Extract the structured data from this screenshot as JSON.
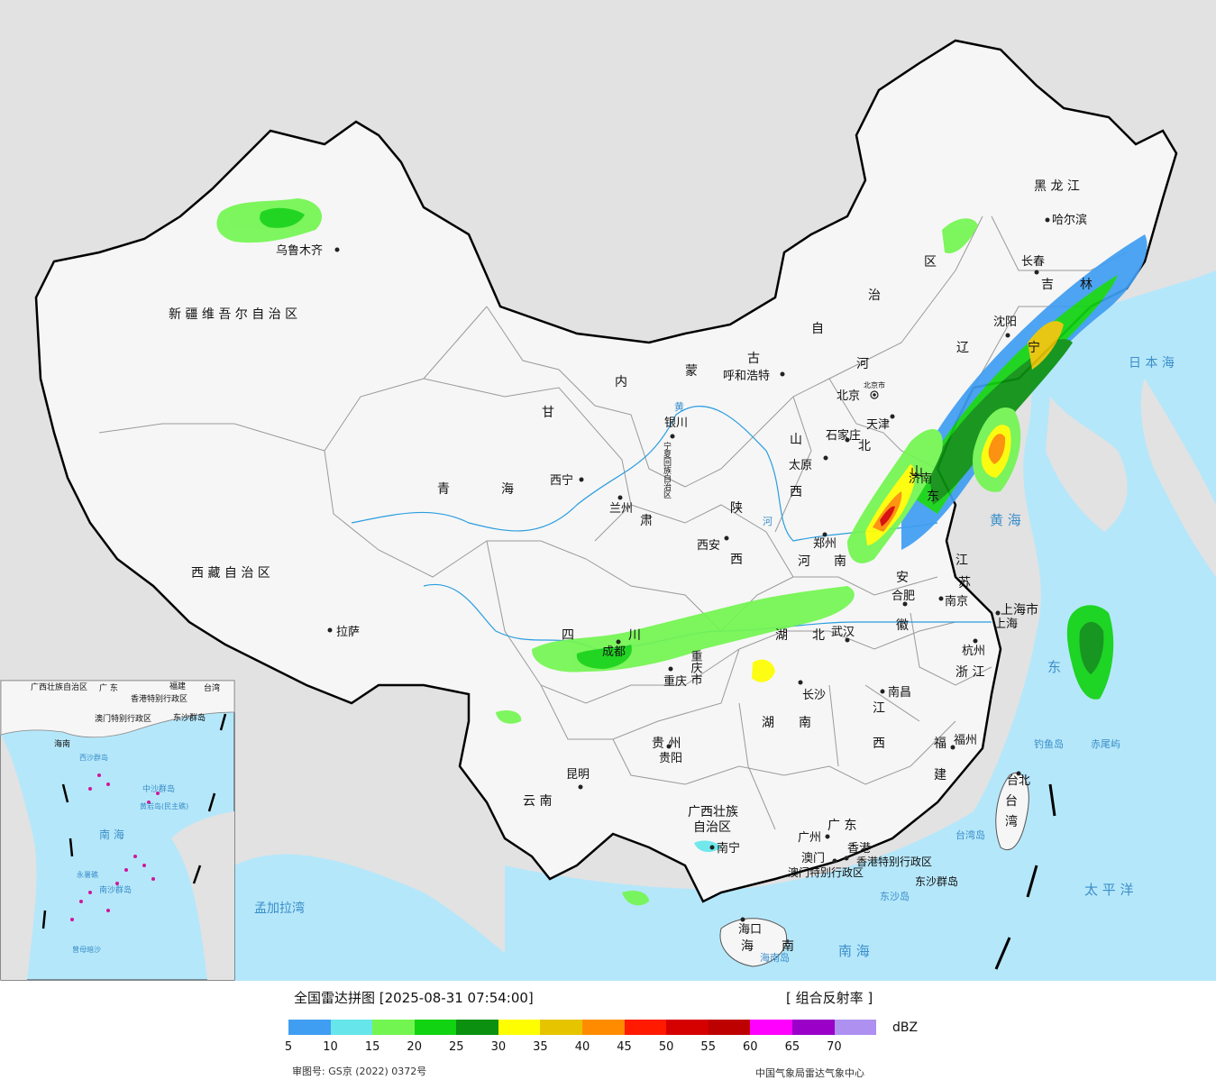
{
  "provinces": [
    {
      "id": "xinjiang",
      "label": "新 疆 维 吾 尔 自 治 区"
    },
    {
      "id": "xizang",
      "label": "西 藏 自 治 区"
    },
    {
      "id": "qinghai_1",
      "label": "青"
    },
    {
      "id": "qinghai_2",
      "label": "海"
    },
    {
      "id": "gansu_1",
      "label": "甘"
    },
    {
      "id": "gansu_2",
      "label": "肃"
    },
    {
      "id": "neimenggu_1",
      "label": "内"
    },
    {
      "id": "neimenggu_2",
      "label": "蒙"
    },
    {
      "id": "neimenggu_3",
      "label": "古"
    },
    {
      "id": "neimenggu_4",
      "label": "自"
    },
    {
      "id": "neimenggu_5",
      "label": "治"
    },
    {
      "id": "neimenggu_6",
      "label": "区"
    },
    {
      "id": "heilongjiang",
      "label": "黑 龙 江"
    },
    {
      "id": "jilin_1",
      "label": "吉"
    },
    {
      "id": "jilin_2",
      "label": "林"
    },
    {
      "id": "liaoning_1",
      "label": "辽"
    },
    {
      "id": "liaoning_2",
      "label": "宁"
    },
    {
      "id": "hebei_1",
      "label": "河"
    },
    {
      "id": "hebei_2",
      "label": "北"
    },
    {
      "id": "shanxi_1",
      "label": "山"
    },
    {
      "id": "shanxi_2",
      "label": "西"
    },
    {
      "id": "shaanxi_1",
      "label": "陕"
    },
    {
      "id": "shaanxi_2",
      "label": "西"
    },
    {
      "id": "ningxia",
      "label": "宁夏回族自治区"
    },
    {
      "id": "shandong_1",
      "label": "山"
    },
    {
      "id": "shandong_2",
      "label": "东"
    },
    {
      "id": "henan_1",
      "label": "河"
    },
    {
      "id": "henan_2",
      "label": "南"
    },
    {
      "id": "jiangsu_1",
      "label": "江"
    },
    {
      "id": "jiangsu_2",
      "label": "苏"
    },
    {
      "id": "anhui_1",
      "label": "安"
    },
    {
      "id": "anhui_2",
      "label": "徽"
    },
    {
      "id": "sichuan_1",
      "label": "四"
    },
    {
      "id": "sichuan_2",
      "label": "川"
    },
    {
      "id": "chongqing",
      "label": "重庆市"
    },
    {
      "id": "hubei_1",
      "label": "湖"
    },
    {
      "id": "hubei_2",
      "label": "北"
    },
    {
      "id": "shanghai",
      "label": "上海市"
    },
    {
      "id": "zhejiang",
      "label": "浙 江"
    },
    {
      "id": "hunan_1",
      "label": "湖"
    },
    {
      "id": "hunan_2",
      "label": "南"
    },
    {
      "id": "jiangxi_1",
      "label": "江"
    },
    {
      "id": "jiangxi_2",
      "label": "西"
    },
    {
      "id": "guizhou",
      "label": "贵 州"
    },
    {
      "id": "fujian_1",
      "label": "福"
    },
    {
      "id": "fujian_2",
      "label": "建"
    },
    {
      "id": "yunnan",
      "label": "云 南"
    },
    {
      "id": "guangxi_1",
      "label": "广西壮族"
    },
    {
      "id": "guangxi_2",
      "label": "自治区"
    },
    {
      "id": "guangdong",
      "label": "广 东"
    },
    {
      "id": "taiwan_1",
      "label": "台"
    },
    {
      "id": "taiwan_2",
      "label": "湾"
    },
    {
      "id": "hainan_1",
      "label": "海"
    },
    {
      "id": "hainan_2",
      "label": "南"
    },
    {
      "id": "hongkong",
      "label": "香港特别行政区"
    },
    {
      "id": "macau",
      "label": "澳门特别行政区"
    }
  ],
  "cities": [
    {
      "id": "urumqi",
      "label": "乌鲁木齐"
    },
    {
      "id": "lhasa",
      "label": "拉萨"
    },
    {
      "id": "xining",
      "label": "西宁"
    },
    {
      "id": "lanzhou",
      "label": "兰州"
    },
    {
      "id": "yinchuan",
      "label": "银川"
    },
    {
      "id": "hohhot",
      "label": "呼和浩特"
    },
    {
      "id": "beijing",
      "label": "北京"
    },
    {
      "id": "beijing_small",
      "label": "北京市"
    },
    {
      "id": "tianjin",
      "label": "天津"
    },
    {
      "id": "shijiazhuang",
      "label": "石家庄"
    },
    {
      "id": "taiyuan",
      "label": "太原"
    },
    {
      "id": "xian",
      "label": "西安"
    },
    {
      "id": "zhengzhou",
      "label": "郑州"
    },
    {
      "id": "jinan",
      "label": "济南"
    },
    {
      "id": "shenyang",
      "label": "沈阳"
    },
    {
      "id": "changchun",
      "label": "长春"
    },
    {
      "id": "harbin",
      "label": "哈尔滨"
    },
    {
      "id": "chengdu",
      "label": "成都"
    },
    {
      "id": "chongqing",
      "label": "重庆"
    },
    {
      "id": "wuhan",
      "label": "武汉"
    },
    {
      "id": "hefei",
      "label": "合肥"
    },
    {
      "id": "nanjing",
      "label": "南京"
    },
    {
      "id": "shanghai",
      "label": "上海"
    },
    {
      "id": "hangzhou",
      "label": "杭州"
    },
    {
      "id": "changsha",
      "label": "长沙"
    },
    {
      "id": "nanchang",
      "label": "南昌"
    },
    {
      "id": "fuzhou",
      "label": "福州"
    },
    {
      "id": "guiyang",
      "label": "贵阳"
    },
    {
      "id": "kunming",
      "label": "昆明"
    },
    {
      "id": "nanning",
      "label": "南宁"
    },
    {
      "id": "guangzhou",
      "label": "广州"
    },
    {
      "id": "hongkong",
      "label": "香港"
    },
    {
      "id": "macau",
      "label": "澳门"
    },
    {
      "id": "haikou",
      "label": "海口"
    },
    {
      "id": "taipei",
      "label": "台北"
    }
  ],
  "water": [
    {
      "id": "sea_japan",
      "label": "日 本 海"
    },
    {
      "id": "yellow_sea",
      "label": "黄 海"
    },
    {
      "id": "east_sea",
      "label": "东"
    },
    {
      "id": "pacific",
      "label": "太 平 洋"
    },
    {
      "id": "south_sea",
      "label": "南 海"
    },
    {
      "id": "bengal",
      "label": "孟加拉湾"
    },
    {
      "id": "hainan_dao",
      "label": "海南岛"
    },
    {
      "id": "taiwan_dao",
      "label": "台湾岛"
    },
    {
      "id": "dongsha",
      "label": "东沙群岛"
    },
    {
      "id": "dongsha_2",
      "label": "东沙岛"
    },
    {
      "id": "diaoyu",
      "label": "钓鱼岛"
    },
    {
      "id": "chiwei",
      "label": "赤尾屿"
    },
    {
      "id": "yellow_river",
      "label": "黄"
    },
    {
      "id": "river_he",
      "label": "河"
    }
  ],
  "inset": {
    "labels": [
      {
        "id": "i_guangxi",
        "label": "广西壮族自治区"
      },
      {
        "id": "i_guangdong",
        "label": "广 东"
      },
      {
        "id": "i_fujian",
        "label": "福建"
      },
      {
        "id": "i_taiwan",
        "label": "台湾"
      },
      {
        "id": "i_hk",
        "label": "香港特别行政区"
      },
      {
        "id": "i_macau",
        "label": "澳门特别行政区"
      },
      {
        "id": "i_dongsha",
        "label": "东沙群岛"
      },
      {
        "id": "i_hainan",
        "label": "海南"
      },
      {
        "id": "i_zhongsha",
        "label": "中沙群岛"
      },
      {
        "id": "i_huangyan",
        "label": "黄岩岛(民主礁)"
      },
      {
        "id": "i_southsea",
        "label": "南 海"
      },
      {
        "id": "i_yongshu",
        "label": "永暑礁"
      },
      {
        "id": "i_nansha",
        "label": "南沙群岛"
      },
      {
        "id": "i_zengmu",
        "label": "曾母暗沙"
      },
      {
        "id": "i_xisha",
        "label": "西沙群岛"
      }
    ]
  },
  "legend": {
    "title": "全国雷达拼图 [2025-08-31 07:54:00]",
    "product": "[ 组合反射率 ]",
    "unit": "dBZ",
    "colors": [
      "#3f9ef2",
      "#66e6ea",
      "#73f551",
      "#12d312",
      "#0b9010",
      "#fefe00",
      "#e6c400",
      "#ff8c00",
      "#ff1a00",
      "#d50000",
      "#bd0000",
      "#ff00ff",
      "#9a00c8",
      "#ad90f0"
    ],
    "ticks": [
      "5",
      "10",
      "15",
      "20",
      "25",
      "30",
      "35",
      "40",
      "45",
      "50",
      "55",
      "60",
      "65",
      "70"
    ],
    "approval": "审图号: GS京 (2022) 0372号",
    "center": "中国气象局雷达气象中心"
  }
}
